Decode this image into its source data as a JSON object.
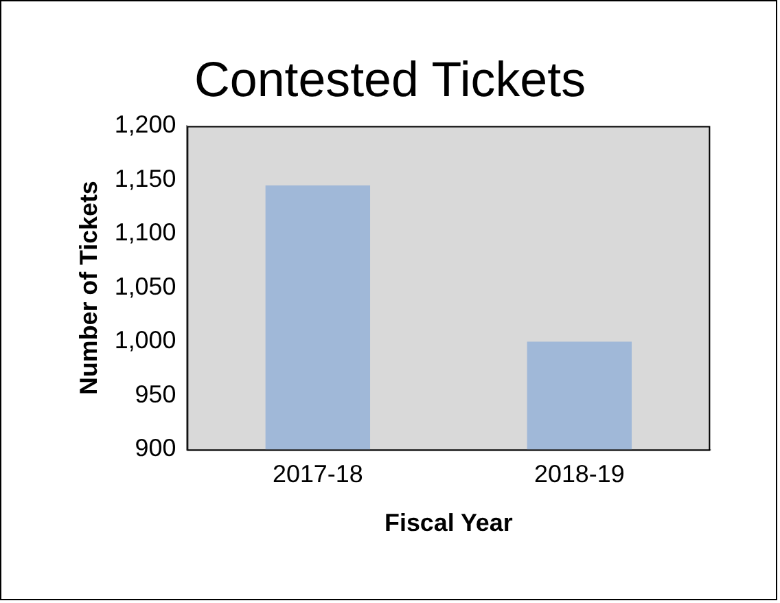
{
  "chart_data": {
    "type": "bar",
    "title": "Contested Tickets",
    "xlabel": "Fiscal Year",
    "ylabel": "Number of Tickets",
    "categories": [
      "2017-18",
      "2018-19"
    ],
    "values": [
      1145,
      1000
    ],
    "color": "#a0b8d8",
    "ylim": [
      900,
      1200
    ],
    "yticks": [
      {
        "value": 900,
        "label": "900"
      },
      {
        "value": 950,
        "label": "950"
      },
      {
        "value": 1000,
        "label": "1,000"
      },
      {
        "value": 1050,
        "label": "1,050"
      },
      {
        "value": 1100,
        "label": "1,100"
      },
      {
        "value": 1150,
        "label": "1,150"
      },
      {
        "value": 1200,
        "label": "1,200"
      }
    ],
    "grid": false,
    "legend": false
  }
}
